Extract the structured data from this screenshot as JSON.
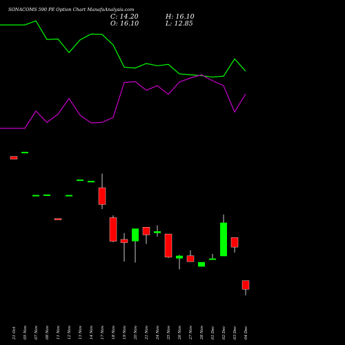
{
  "header": {
    "title": "SONACOMS 590 PE Option  Chart ManafaAnalysis.com",
    "close": "C: 14.20",
    "open": "O: 16.10",
    "high": "H: 16.10",
    "low": "L: 12.85"
  },
  "colors": {
    "background": "#000000",
    "upper_line": "#00ff00",
    "lower_line": "#cc00cc",
    "bullish": "#00ff00",
    "bearish": "#ff0000",
    "wick": "#ffffff",
    "text": "#ffffff"
  },
  "chart_data": {
    "type": "candlestick",
    "categories": [
      "21 Oct",
      "05 Nov",
      "07 Nov",
      "08 Nov",
      "11 Nov",
      "12 Nov",
      "13 Nov",
      "14 Nov",
      "17 Nov",
      "18 Nov",
      "19 Nov",
      "20 Nov",
      "21 Nov",
      "24 Nov",
      "25 Nov",
      "26 Nov",
      "27 Nov",
      "28 Nov",
      "01 Dec",
      "02 Dec",
      "03 Dec",
      "04 Dec"
    ],
    "ohlc": [
      {
        "open": 43.5,
        "high": 43.5,
        "low": 42.9,
        "close": 42.9
      },
      {
        "open": 44.5,
        "high": 44.5,
        "low": 44.5,
        "close": 44.5
      },
      {
        "open": 35.0,
        "high": 35.0,
        "low": 35.0,
        "close": 35.0
      },
      {
        "open": 35.1,
        "high": 35.1,
        "low": 35.1,
        "close": 35.1
      },
      {
        "open": 29.8,
        "high": 29.8,
        "low": 29.5,
        "close": 29.5
      },
      {
        "open": 35.0,
        "high": 35.0,
        "low": 35.0,
        "close": 35.0
      },
      {
        "open": 38.4,
        "high": 38.4,
        "low": 38.4,
        "close": 38.4
      },
      {
        "open": 38.1,
        "high": 38.1,
        "low": 38.1,
        "close": 38.1
      },
      {
        "open": 36.6,
        "high": 39.7,
        "low": 31.9,
        "close": 32.9
      },
      {
        "open": 30.0,
        "high": 30.5,
        "low": 24.6,
        "close": 24.8
      },
      {
        "open": 25.2,
        "high": 26.6,
        "low": 20.3,
        "close": 24.5
      },
      {
        "open": 24.8,
        "high": 27.6,
        "low": 20.1,
        "close": 27.6
      },
      {
        "open": 27.9,
        "high": 27.9,
        "low": 24.2,
        "close": 26.2
      },
      {
        "open": 26.6,
        "high": 28.3,
        "low": 25.8,
        "close": 27.0
      },
      {
        "open": 26.4,
        "high": 26.4,
        "low": 21.1,
        "close": 21.3
      },
      {
        "open": 21.0,
        "high": 21.8,
        "low": 18.6,
        "close": 21.6
      },
      {
        "open": 21.6,
        "high": 22.8,
        "low": 20.4,
        "close": 20.3
      },
      {
        "open": 19.2,
        "high": 19.7,
        "low": 19.2,
        "close": 20.2
      },
      {
        "open": 20.9,
        "high": 22.0,
        "low": 20.7,
        "close": 21.0
      },
      {
        "open": 21.5,
        "high": 30.7,
        "low": 21.5,
        "close": 28.9
      },
      {
        "open": 25.6,
        "high": 25.6,
        "low": 22.3,
        "close": 23.5
      },
      {
        "open": 16.1,
        "high": 16.1,
        "low": 12.85,
        "close": 14.2
      }
    ],
    "lines": [
      {
        "color": "#00ff00",
        "values": [
          72.5,
          72.5,
          73.4,
          69.3,
          69.4,
          66.4,
          69.2,
          70.5,
          70.4,
          68.1,
          63.2,
          63.0,
          64.0,
          63.5,
          63.8,
          61.7,
          61.5,
          61.3,
          61.0,
          61.2,
          65.0,
          62.3
        ]
      },
      {
        "color": "#cc00cc",
        "values": [
          49.7,
          49.7,
          53.5,
          51.0,
          52.8,
          56.3,
          52.6,
          50.9,
          51.0,
          52.1,
          59.8,
          60.0,
          58.1,
          59.1,
          57.2,
          59.9,
          60.8,
          61.5,
          60.2,
          59.1,
          53.3,
          57.3
        ]
      }
    ],
    "ylim": [
      8,
      78
    ],
    "grid": false
  }
}
